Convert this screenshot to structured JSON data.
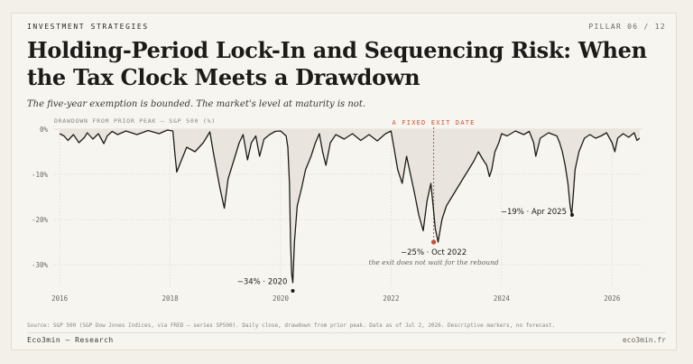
{
  "header": {
    "eyebrow": "INVESTMENT STRATEGIES",
    "pillar": "PILLAR 06 / 12",
    "title_line1": "Holding-Period Lock-In and Sequencing Risk: When",
    "title_line2": "the Tax Clock Meets a Drawdown",
    "subtitle": "The five-year exemption is bounded. The market's level at maturity is not."
  },
  "chart_data": {
    "type": "area",
    "ylabel": "DRAWDOWN FROM PRIOR PEAK — S&P 500 (%)",
    "ylim": [
      -35,
      0
    ],
    "xlim": [
      2015.9,
      2026.55
    ],
    "y_ticks": [
      0,
      -10,
      -20,
      -30
    ],
    "y_tick_labels": [
      "0%",
      "-10%",
      "-20%",
      "-30%"
    ],
    "x_ticks": [
      2016,
      2018,
      2020,
      2022,
      2024,
      2026
    ],
    "x_tick_labels": [
      "2016",
      "2018",
      "2020",
      "2022",
      "2024",
      "2026"
    ],
    "grid": true,
    "series": [
      {
        "x": [
          2016.0,
          2016.08,
          2016.15,
          2016.25,
          2016.35,
          2016.45,
          2016.5,
          2016.6,
          2016.7,
          2016.8,
          2016.86,
          2016.95,
          2017.05,
          2017.2,
          2017.4,
          2017.6,
          2017.8,
          2017.95,
          2018.05,
          2018.09,
          2018.12,
          2018.2,
          2018.3,
          2018.45,
          2018.6,
          2018.72,
          2018.78,
          2018.84,
          2018.9,
          2018.98,
          2019.05,
          2019.15,
          2019.25,
          2019.32,
          2019.4,
          2019.47,
          2019.55,
          2019.62,
          2019.7,
          2019.8,
          2019.9,
          2020.0,
          2020.1,
          2020.13,
          2020.16,
          2020.18,
          2020.2,
          2020.22,
          2020.25,
          2020.3,
          2020.38,
          2020.45,
          2020.55,
          2020.63,
          2020.7,
          2020.76,
          2020.82,
          2020.9,
          2021.0,
          2021.15,
          2021.3,
          2021.45,
          2021.6,
          2021.75,
          2021.9,
          2022.0,
          2022.05,
          2022.12,
          2022.2,
          2022.28,
          2022.35,
          2022.42,
          2022.5,
          2022.58,
          2022.65,
          2022.72,
          2022.76,
          2022.8,
          2022.85,
          2022.92,
          2023.0,
          2023.1,
          2023.2,
          2023.3,
          2023.4,
          2023.5,
          2023.58,
          2023.65,
          2023.73,
          2023.78,
          2023.82,
          2023.88,
          2023.95,
          2024.0,
          2024.1,
          2024.25,
          2024.4,
          2024.5,
          2024.58,
          2024.62,
          2024.7,
          2024.85,
          2025.0,
          2025.05,
          2025.1,
          2025.15,
          2025.2,
          2025.24,
          2025.27,
          2025.3,
          2025.33,
          2025.4,
          2025.5,
          2025.6,
          2025.7,
          2025.8,
          2025.9,
          2026.0,
          2026.05,
          2026.1,
          2026.2,
          2026.3,
          2026.4,
          2026.45,
          2026.5
        ],
        "y": [
          -1,
          -1.5,
          -2.5,
          -1.2,
          -3,
          -1.8,
          -0.8,
          -2.2,
          -1,
          -3.2,
          -1.5,
          -0.5,
          -1.2,
          -0.4,
          -1.2,
          -0.3,
          -1,
          -0.2,
          -0.4,
          -6,
          -9.5,
          -7,
          -4,
          -5,
          -3,
          -0.6,
          -5,
          -9,
          -13,
          -17.5,
          -11,
          -7,
          -3,
          -1.2,
          -6.8,
          -3,
          -1.5,
          -6,
          -2.2,
          -1.2,
          -0.5,
          -0.4,
          -1.5,
          -4,
          -12,
          -25,
          -32,
          -34,
          -25,
          -17,
          -13,
          -9,
          -6,
          -3,
          -1,
          -5,
          -8,
          -3,
          -1.2,
          -2.2,
          -1,
          -2.5,
          -1.2,
          -2.6,
          -1,
          -0.4,
          -4,
          -9,
          -12,
          -6,
          -10,
          -14,
          -19,
          -22.5,
          -16,
          -12,
          -17,
          -22,
          -25,
          -20,
          -17,
          -15,
          -13,
          -11,
          -9,
          -7,
          -5,
          -6.5,
          -8,
          -10.5,
          -9,
          -5,
          -3,
          -1,
          -1.5,
          -0.4,
          -1.2,
          -0.5,
          -3,
          -6,
          -2,
          -0.8,
          -1.5,
          -3,
          -5,
          -8,
          -12,
          -17,
          -19,
          -14,
          -9,
          -5,
          -2,
          -1.2,
          -2,
          -1.5,
          -0.8,
          -3,
          -5,
          -2,
          -1,
          -1.8,
          -0.8,
          -2.5,
          -2
        ]
      }
    ],
    "exit_marker": {
      "x": 2022.77,
      "label": "A FIXED EXIT DATE"
    },
    "annotations": [
      {
        "x": 2020.22,
        "y": -34,
        "label": "−34% · 2020"
      },
      {
        "x": 2022.77,
        "y": -25,
        "label": "−25% · Oct 2022",
        "note": "the exit does not wait for the rebound"
      },
      {
        "x": 2025.26,
        "y": -19,
        "label": "−19% · Apr 2025"
      }
    ],
    "colors": {
      "line": "#1d1b18",
      "fill": "#e9e5de",
      "accent": "#c0543a",
      "grid": "#e4e0d7",
      "dot": "#1d1b18"
    }
  },
  "footer": {
    "source": "Source: S&P 500 (S&P Dow Jones Indices, via FRED — series SP500). Daily close, drawdown from prior peak. Data as of Jul 2, 2026. Descriptive markers, no forecast.",
    "brand": "Eco3min — Research",
    "site": "eco3min.fr"
  }
}
